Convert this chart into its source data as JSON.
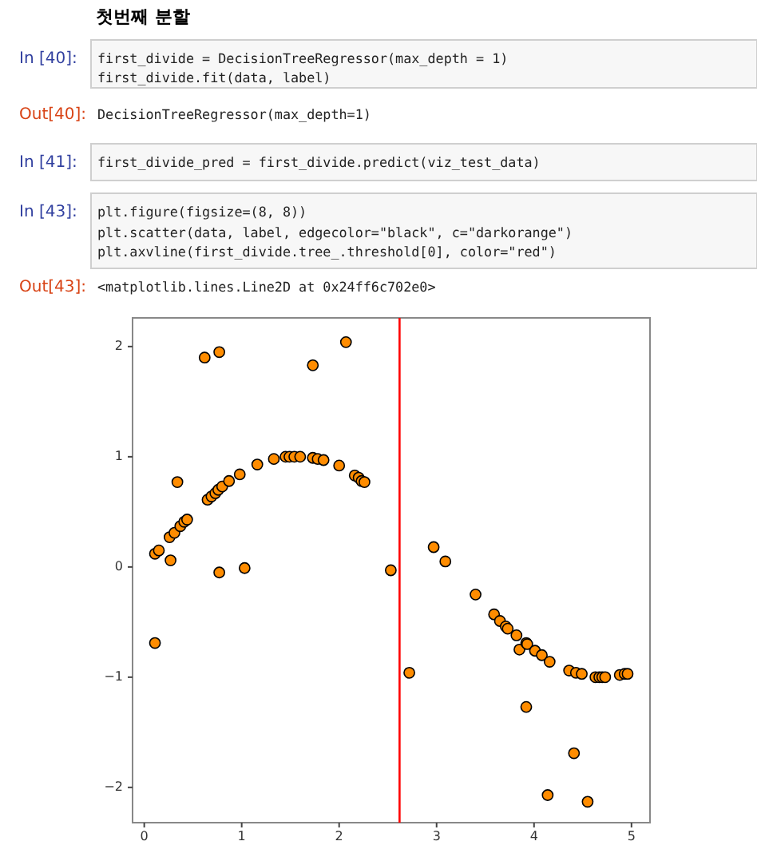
{
  "chart_data": {
    "type": "scatter",
    "marker": "circle",
    "grid": false,
    "xlim": [
      -0.12,
      5.19
    ],
    "ylim": [
      -2.32,
      2.26
    ],
    "xticks": [
      0,
      1,
      2,
      3,
      4,
      5
    ],
    "yticks": [
      -2,
      -1,
      0,
      1,
      2
    ],
    "series": [
      {
        "color": "#ff8c00",
        "x": [
          0.62,
          0.77,
          1.73,
          2.07,
          0.11,
          0.15,
          0.26,
          0.31,
          0.37,
          0.41,
          0.44,
          0.34,
          0.27,
          0.11,
          0.65,
          0.69,
          0.73,
          0.76,
          0.8,
          0.87,
          0.98,
          1.16,
          1.33,
          1.45,
          1.49,
          1.54,
          1.6,
          1.73,
          1.78,
          1.84,
          2.0,
          2.16,
          2.2,
          2.23,
          2.26,
          0.77,
          1.03,
          2.53,
          2.72,
          2.97,
          3.09,
          3.4,
          3.59,
          3.65,
          3.71,
          3.73,
          3.82,
          3.85,
          3.92,
          3.93,
          4.01,
          4.08,
          4.16,
          4.36,
          4.43,
          4.49,
          4.63,
          4.67,
          4.7,
          4.73,
          4.88,
          4.93,
          4.96,
          3.92,
          4.41,
          4.14,
          4.55
        ],
        "values": [
          1.9,
          1.95,
          1.83,
          2.04,
          0.12,
          0.15,
          0.27,
          0.31,
          0.37,
          0.41,
          0.43,
          0.77,
          0.06,
          -0.69,
          0.61,
          0.64,
          0.67,
          0.7,
          0.73,
          0.78,
          0.84,
          0.93,
          0.98,
          1.0,
          1.0,
          1.0,
          1.0,
          0.99,
          0.98,
          0.97,
          0.92,
          0.83,
          0.81,
          0.78,
          0.77,
          -0.05,
          -0.01,
          -0.03,
          -0.96,
          0.18,
          0.05,
          -0.25,
          -0.43,
          -0.49,
          -0.54,
          -0.56,
          -0.62,
          -0.75,
          -0.69,
          -0.7,
          -0.76,
          -0.8,
          -0.86,
          -0.94,
          -0.96,
          -0.97,
          -1.0,
          -1.0,
          -1.0,
          -1.0,
          -0.98,
          -0.97,
          -0.97,
          -1.27,
          -1.69,
          -2.07,
          -2.13
        ]
      }
    ],
    "ref_lines": [
      {
        "axis": "x",
        "value": 2.62,
        "color": "#ff0000"
      }
    ],
    "annotations": [
      "첫번째 분할",
      "In [40]:",
      "first_divide = DecisionTreeRegressor(max_depth = 1)",
      "first_divide.fit(data, label)",
      "Out[40]:",
      "DecisionTreeRegressor(max_depth=1)",
      "In [41]:",
      "first_divide_pred = first_divide.predict(viz_test_data)",
      "In [43]:",
      "plt.figure(figsize=(8, 8))",
      "plt.scatter(data, label, edgecolor=\"black\", c=\"darkorange\")",
      "plt.axvline(first_divide.tree_.threshold[0], color=\"red\")",
      "Out[43]:",
      "<matplotlib.lines.Line2D at 0x24ff6c702e0>"
    ]
  }
}
